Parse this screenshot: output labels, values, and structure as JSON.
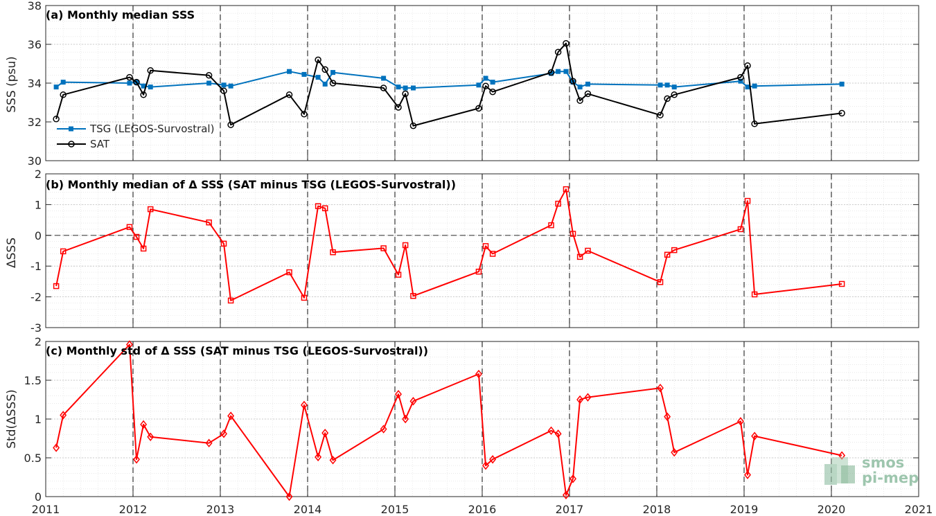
{
  "colors": {
    "tsg": "#0072BD",
    "sat": "#000000",
    "delta": "#FF0000",
    "grid_minor": "#dcdcdc",
    "grid_major": "#bfbfbf",
    "logo": "#86b89a"
  },
  "logo": {
    "line1": "smos",
    "line2": "pi-mep"
  },
  "chart_data": [
    {
      "type": "line",
      "title": "(a) Monthly median SSS",
      "ylabel": "SSS (psu)",
      "xlabel": "",
      "xlim": [
        2011,
        2021
      ],
      "ylim": [
        30,
        38
      ],
      "yticks": [
        30,
        32,
        34,
        36,
        38
      ],
      "xticks": [
        2011,
        2012,
        2013,
        2014,
        2015,
        2016,
        2017,
        2018,
        2019,
        2020,
        2021
      ],
      "year_lines": [
        2012,
        2013,
        2014,
        2015,
        2016,
        2017,
        2018,
        2019,
        2020
      ],
      "grid": true,
      "legend": "upper-left-bottom",
      "series": [
        {
          "name": "TSG (LEGOS-Survostral)",
          "color": "#0072BD",
          "marker": "square",
          "x": [
            2011.12,
            2011.2,
            2011.96,
            2012.04,
            2012.12,
            2012.2,
            2012.87,
            2013.04,
            2013.12,
            2013.79,
            2013.96,
            2014.12,
            2014.2,
            2014.29,
            2014.87,
            2015.04,
            2015.12,
            2015.21,
            2015.96,
            2016.04,
            2016.12,
            2016.79,
            2016.87,
            2016.96,
            2017.04,
            2017.12,
            2017.21,
            2018.04,
            2018.12,
            2018.2,
            2018.96,
            2019.04,
            2019.12,
            2020.12
          ],
          "y": [
            33.8,
            34.05,
            34.0,
            34.05,
            33.85,
            33.8,
            34.0,
            33.9,
            33.85,
            34.6,
            34.45,
            34.3,
            33.95,
            34.55,
            34.25,
            33.8,
            33.75,
            33.75,
            33.9,
            34.25,
            34.05,
            34.5,
            34.6,
            34.6,
            34.05,
            33.8,
            33.95,
            33.9,
            33.9,
            33.8,
            34.1,
            33.8,
            33.85,
            33.95
          ]
        },
        {
          "name": "SAT",
          "color": "#000000",
          "marker": "circle",
          "x": [
            2011.12,
            2011.2,
            2011.96,
            2012.04,
            2012.12,
            2012.2,
            2012.87,
            2013.04,
            2013.12,
            2013.79,
            2013.96,
            2014.12,
            2014.2,
            2014.29,
            2014.87,
            2015.04,
            2015.12,
            2015.21,
            2015.96,
            2016.04,
            2016.12,
            2016.79,
            2016.87,
            2016.96,
            2017.04,
            2017.12,
            2017.21,
            2018.04,
            2018.12,
            2018.2,
            2018.96,
            2019.04,
            2019.12,
            2020.12
          ],
          "y": [
            32.15,
            33.4,
            34.3,
            34.05,
            33.4,
            34.65,
            34.4,
            33.6,
            31.85,
            33.4,
            32.4,
            35.2,
            34.7,
            34.0,
            33.75,
            32.75,
            33.45,
            31.8,
            32.7,
            33.85,
            33.55,
            34.55,
            35.6,
            36.05,
            34.1,
            33.1,
            33.45,
            32.35,
            33.2,
            33.4,
            34.3,
            34.9,
            31.9,
            32.45
          ]
        }
      ]
    },
    {
      "type": "line",
      "title": "(b) Monthly median of Δ SSS (SAT minus TSG (LEGOS-Survostral))",
      "ylabel": "ΔSSS",
      "xlabel": "",
      "xlim": [
        2011,
        2021
      ],
      "ylim": [
        -3,
        2
      ],
      "yticks": [
        -3,
        -2,
        -1,
        0,
        1,
        2
      ],
      "xticks": [
        2011,
        2012,
        2013,
        2014,
        2015,
        2016,
        2017,
        2018,
        2019,
        2020,
        2021
      ],
      "year_lines": [
        2012,
        2013,
        2014,
        2015,
        2016,
        2017,
        2018,
        2019,
        2020
      ],
      "zero_line": true,
      "grid": true,
      "series": [
        {
          "name": "",
          "color": "#FF0000",
          "marker": "square",
          "x": [
            2011.12,
            2011.2,
            2011.96,
            2012.04,
            2012.12,
            2012.2,
            2012.87,
            2013.04,
            2013.12,
            2013.79,
            2013.96,
            2014.12,
            2014.2,
            2014.29,
            2014.87,
            2015.04,
            2015.12,
            2015.21,
            2015.96,
            2016.04,
            2016.12,
            2016.79,
            2016.87,
            2016.96,
            2017.04,
            2017.12,
            2017.21,
            2018.04,
            2018.12,
            2018.2,
            2018.96,
            2019.04,
            2019.12,
            2020.12
          ],
          "y": [
            -1.65,
            -0.52,
            0.27,
            -0.05,
            -0.43,
            0.85,
            0.42,
            -0.27,
            -2.12,
            -1.2,
            -2.03,
            0.95,
            0.88,
            -0.55,
            -0.42,
            -1.28,
            -0.32,
            -1.97,
            -1.18,
            -0.35,
            -0.6,
            0.33,
            1.03,
            1.5,
            0.05,
            -0.7,
            -0.5,
            -1.52,
            -0.63,
            -0.48,
            0.2,
            1.12,
            -1.92,
            -1.58
          ]
        }
      ]
    },
    {
      "type": "line",
      "title": "(c) Monthly std of Δ SSS (SAT minus TSG (LEGOS-Survostral))",
      "ylabel": "Std(ΔSSS)",
      "xlabel": "",
      "xlim": [
        2011,
        2021
      ],
      "ylim": [
        0,
        2
      ],
      "yticks": [
        0,
        0.5,
        1,
        1.5,
        2
      ],
      "ytick_labels": [
        "0",
        "0.5",
        "1",
        "1.5",
        "2"
      ],
      "xticks": [
        2011,
        2012,
        2013,
        2014,
        2015,
        2016,
        2017,
        2018,
        2019,
        2020,
        2021
      ],
      "year_lines": [
        2012,
        2013,
        2014,
        2015,
        2016,
        2017,
        2018,
        2019,
        2020
      ],
      "grid": true,
      "series": [
        {
          "name": "",
          "color": "#FF0000",
          "marker": "diamond",
          "x": [
            2011.12,
            2011.2,
            2011.96,
            2012.04,
            2012.12,
            2012.2,
            2012.87,
            2013.04,
            2013.12,
            2013.79,
            2013.96,
            2014.12,
            2014.2,
            2014.29,
            2014.87,
            2015.04,
            2015.12,
            2015.21,
            2015.96,
            2016.04,
            2016.12,
            2016.79,
            2016.87,
            2016.96,
            2017.04,
            2017.12,
            2017.21,
            2018.04,
            2018.12,
            2018.2,
            2018.96,
            2019.04,
            2019.12,
            2020.12
          ],
          "y": [
            0.63,
            1.05,
            1.96,
            0.48,
            0.93,
            0.77,
            0.69,
            0.81,
            1.04,
            0.0,
            1.18,
            0.51,
            0.82,
            0.47,
            0.87,
            1.32,
            1.0,
            1.23,
            1.58,
            0.4,
            0.48,
            0.85,
            0.81,
            0.02,
            0.23,
            1.25,
            1.28,
            1.4,
            1.03,
            0.57,
            0.97,
            0.28,
            0.78,
            0.53
          ]
        }
      ]
    }
  ]
}
